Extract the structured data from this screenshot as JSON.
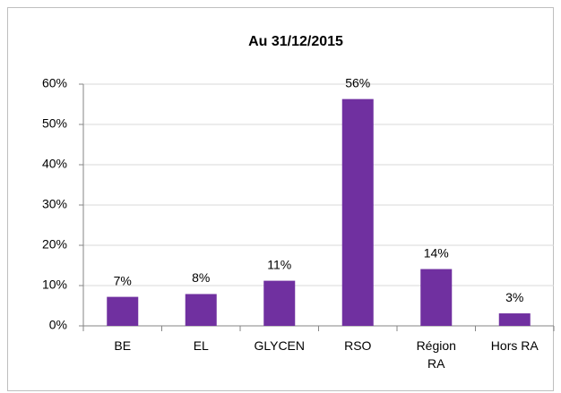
{
  "chart_data": {
    "type": "bar",
    "title": "Au 31/12/2015",
    "categories": [
      "BE",
      "EL",
      "GLYCEN",
      "RSO",
      "Région RA",
      "Hors RA"
    ],
    "values": [
      7.2,
      7.9,
      11.2,
      56.3,
      14.1,
      3.1
    ],
    "value_labels": [
      "7%",
      "8%",
      "11%",
      "56%",
      "14%",
      "3%"
    ],
    "color": "#7030a0",
    "ylim": [
      0,
      60
    ],
    "yticks": [
      {
        "value": 0,
        "label": "0%"
      },
      {
        "value": 10,
        "label": "10%"
      },
      {
        "value": 20,
        "label": "20%"
      },
      {
        "value": 30,
        "label": "30%"
      },
      {
        "value": 40,
        "label": "40%"
      },
      {
        "value": 50,
        "label": "50%"
      },
      {
        "value": 60,
        "label": "60%"
      }
    ],
    "grid": true
  }
}
